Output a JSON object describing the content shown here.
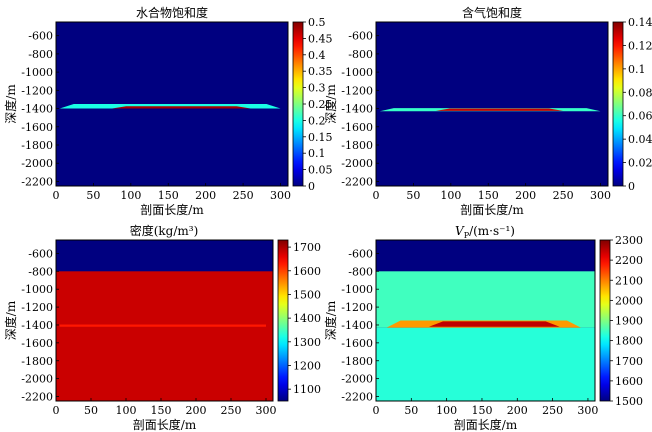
{
  "chart_data": [
    {
      "type": "heatmap",
      "title": "水合物饱和度",
      "title_italic_part": "",
      "title_sub": "",
      "xlabel": "剖面长度/m",
      "ylabel": "深度/m",
      "xlim": [
        0,
        310
      ],
      "ylim": [
        -2250,
        -450
      ],
      "xticks": [
        0,
        50,
        100,
        150,
        200,
        250,
        300
      ],
      "yticks": [
        -600,
        -800,
        -1000,
        -1200,
        -1400,
        -1600,
        -1800,
        -2000,
        -2200
      ],
      "colorbar": {
        "min": 0,
        "max": 0.5,
        "ticks": [
          0,
          0.05,
          0.1,
          0.15,
          0.2,
          0.25,
          0.3,
          0.35,
          0.4,
          0.45,
          0.5
        ],
        "tick_labels": [
          "0",
          "0.05",
          "0.1",
          "0.15",
          "0.2",
          "0.25",
          "0.3",
          "0.35",
          "0.4",
          "0.45",
          "0.5"
        ]
      },
      "background_value": 0,
      "features": [
        {
          "name": "hydrate-layer-edge",
          "x_range": [
            5,
            300
          ],
          "y_top": -1350,
          "y_bottom": -1400,
          "value": 0.2
        },
        {
          "name": "hydrate-layer-core",
          "x_range": [
            75,
            260
          ],
          "y_top": -1375,
          "y_bottom": -1400,
          "value": 0.48
        }
      ]
    },
    {
      "type": "heatmap",
      "title": "含气饱和度",
      "title_italic_part": "",
      "title_sub": "",
      "xlabel": "剖面长度/m",
      "ylabel": "深度/m",
      "xlim": [
        0,
        310
      ],
      "ylim": [
        -2250,
        -450
      ],
      "xticks": [
        0,
        50,
        100,
        150,
        200,
        250,
        300
      ],
      "yticks": [
        -600,
        -800,
        -1000,
        -1200,
        -1400,
        -1600,
        -1800,
        -2000,
        -2200
      ],
      "colorbar": {
        "min": 0,
        "max": 0.14,
        "ticks": [
          0,
          0.02,
          0.04,
          0.06,
          0.08,
          0.1,
          0.12,
          0.14
        ],
        "tick_labels": [
          "0",
          "0.02",
          "0.04",
          "0.06",
          "0.08",
          "0.1",
          "0.12",
          "0.14"
        ]
      },
      "background_value": 0,
      "features": [
        {
          "name": "gas-layer-edge",
          "x_range": [
            5,
            300
          ],
          "y_top": -1395,
          "y_bottom": -1430,
          "value": 0.06
        },
        {
          "name": "gas-layer-core",
          "x_range": [
            80,
            250
          ],
          "y_top": -1400,
          "y_bottom": -1425,
          "value": 0.13
        }
      ]
    },
    {
      "type": "heatmap",
      "title": "密度(kg/m³)",
      "title_italic_part": "",
      "title_sub": "",
      "xlabel": "剖面长度/m",
      "ylabel": "深度/m",
      "xlim": [
        0,
        310
      ],
      "ylim": [
        -2250,
        -450
      ],
      "xticks": [
        0,
        50,
        100,
        150,
        200,
        250,
        300
      ],
      "yticks": [
        -600,
        -800,
        -1000,
        -1200,
        -1400,
        -1600,
        -1800,
        -2000,
        -2200
      ],
      "colorbar": {
        "min": 1050,
        "max": 1730,
        "ticks": [
          1100,
          1200,
          1300,
          1400,
          1500,
          1600,
          1700
        ],
        "tick_labels": [
          "1100",
          "1200",
          "1300",
          "1400",
          "1500",
          "1600",
          "1700"
        ]
      },
      "background_value": 1050,
      "features": [
        {
          "name": "water-column",
          "x_range": [
            0,
            310
          ],
          "y_top": -450,
          "y_bottom": -800,
          "value": 1050
        },
        {
          "name": "sediment",
          "x_range": [
            0,
            310
          ],
          "y_top": -800,
          "y_bottom": -2250,
          "value": 1680
        },
        {
          "name": "density-anomaly-line",
          "x_range": [
            5,
            300
          ],
          "y_top": -1395,
          "y_bottom": -1420,
          "value": 1630
        }
      ]
    },
    {
      "type": "heatmap",
      "title": "/(m·s⁻¹)",
      "title_italic_part": "V",
      "title_sub": "P",
      "xlabel": "剖面长度/m",
      "ylabel": "深度/m",
      "xlim": [
        0,
        310
      ],
      "ylim": [
        -2250,
        -450
      ],
      "xticks": [
        0,
        50,
        100,
        150,
        200,
        250,
        300
      ],
      "yticks": [
        -600,
        -800,
        -1000,
        -1200,
        -1400,
        -1600,
        -1800,
        -2000,
        -2200
      ],
      "colorbar": {
        "min": 1500,
        "max": 2300,
        "ticks": [
          1500,
          1600,
          1700,
          1800,
          1900,
          2000,
          2100,
          2200,
          2300
        ],
        "tick_labels": [
          "1500",
          "1600",
          "1700",
          "1800",
          "1900",
          "2000",
          "2100",
          "2200",
          "2300"
        ]
      },
      "background_value": 1500,
      "features": [
        {
          "name": "water-column",
          "x_range": [
            0,
            310
          ],
          "y_top": -450,
          "y_bottom": -800,
          "value": 1500
        },
        {
          "name": "upper-sediment",
          "x_range": [
            0,
            310
          ],
          "y_top": -800,
          "y_bottom": -1430,
          "value": 1850
        },
        {
          "name": "lower-sediment",
          "x_range": [
            0,
            310
          ],
          "y_top": -1430,
          "y_bottom": -2250,
          "value": 1830
        },
        {
          "name": "velocity-layer-edge",
          "x_range": [
            15,
            290
          ],
          "y_top": -1350,
          "y_bottom": -1430,
          "value": 2080
        },
        {
          "name": "velocity-layer-core",
          "x_range": [
            75,
            260
          ],
          "y_top": -1360,
          "y_bottom": -1420,
          "value": 2250
        }
      ]
    }
  ]
}
